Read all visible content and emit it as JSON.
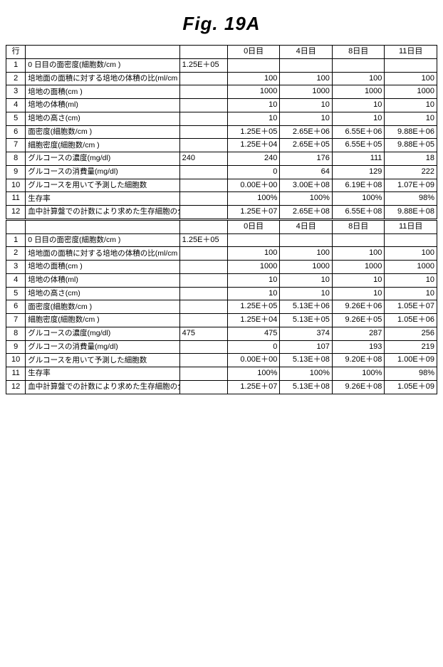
{
  "figure_title": "Fig. 19A",
  "colors": {
    "background": "#ffffff",
    "border": "#000000",
    "text": "#000000"
  },
  "typography": {
    "title_fontsize_pt": 20,
    "title_weight": "bold",
    "title_style": "italic",
    "cell_fontsize_pt": 8.5
  },
  "day_headers": {
    "row_label": "行",
    "init_label": "",
    "d0": "0日目",
    "d4": "4日目",
    "d8": "8日目",
    "d11": "11日目"
  },
  "row_labels": {
    "r1": "0 日目の面密度(細胞数/cm )",
    "r2": "培地面の面積に対する培地の体積の比(ml/cm )",
    "r3": "培地の面積(cm )",
    "r4": "培地の体積(ml)",
    "r5": "培地の高さ(cm)",
    "r6": "面密度(細胞数/cm )",
    "r7": "細胞密度(細胞数/cm )",
    "r8": "グルコースの濃度(mg/dl)",
    "r9": "グルコースの消費量(mg/dl)",
    "r10": "グルコースを用いて予測した細胞数",
    "r11": "生存率",
    "r12": "血中計算盤での計数により求めた生存細胞の全数"
  },
  "block_a": {
    "idx": {
      "r1": "1",
      "r2": "2",
      "r3": "3",
      "r4": "4",
      "r5": "5",
      "r6": "6",
      "r7": "7",
      "r8": "8",
      "r9": "9",
      "r10": "10",
      "r11": "11",
      "r12": "12"
    },
    "init": {
      "r1": "1.25E＋05",
      "r2": "",
      "r3": "",
      "r4": "",
      "r5": "",
      "r6": "",
      "r7": "",
      "r8": "240",
      "r9": "",
      "r10": "",
      "r11": "",
      "r12": ""
    },
    "d0": {
      "r1": "",
      "r2": "100",
      "r3": "1000",
      "r4": "10",
      "r5": "10",
      "r6": "1.25E＋05",
      "r7": "1.25E＋04",
      "r8": "240",
      "r9": "0",
      "r10": "0.00E＋00",
      "r11": "100%",
      "r12": "1.25E＋07"
    },
    "d4": {
      "r1": "",
      "r2": "100",
      "r3": "1000",
      "r4": "10",
      "r5": "10",
      "r6": "2.65E＋06",
      "r7": "2.65E＋05",
      "r8": "176",
      "r9": "64",
      "r10": "3.00E＋08",
      "r11": "100%",
      "r12": "2.65E＋08"
    },
    "d8": {
      "r1": "",
      "r2": "100",
      "r3": "1000",
      "r4": "10",
      "r5": "10",
      "r6": "6.55E＋06",
      "r7": "6.55E＋05",
      "r8": "111",
      "r9": "129",
      "r10": "6.19E＋08",
      "r11": "100%",
      "r12": "6.55E＋08"
    },
    "d11": {
      "r1": "",
      "r2": "100",
      "r3": "1000",
      "r4": "10",
      "r5": "10",
      "r6": "9.88E＋06",
      "r7": "9.88E＋05",
      "r8": "18",
      "r9": "222",
      "r10": "1.07E＋09",
      "r11": "98%",
      "r12": "9.88E＋08"
    }
  },
  "block_b": {
    "idx": {
      "r1": "1",
      "r2": "2",
      "r3": "3",
      "r4": "4",
      "r5": "5",
      "r6": "6",
      "r7": "7",
      "r8": "8",
      "r9": "9",
      "r10": "10",
      "r11": "11",
      "r12": "12"
    },
    "init": {
      "r1": "1.25E＋05",
      "r2": "",
      "r3": "",
      "r4": "",
      "r5": "",
      "r6": "",
      "r7": "",
      "r8": "475",
      "r9": "",
      "r10": "",
      "r11": "",
      "r12": ""
    },
    "d0": {
      "r1": "",
      "r2": "100",
      "r3": "1000",
      "r4": "10",
      "r5": "10",
      "r6": "1.25E＋05",
      "r7": "1.25E＋04",
      "r8": "475",
      "r9": "0",
      "r10": "0.00E＋00",
      "r11": "100%",
      "r12": "1.25E＋07"
    },
    "d4": {
      "r1": "",
      "r2": "100",
      "r3": "1000",
      "r4": "10",
      "r5": "10",
      "r6": "5.13E＋06",
      "r7": "5.13E＋05",
      "r8": "374",
      "r9": "107",
      "r10": "5.13E＋08",
      "r11": "100%",
      "r12": "5.13E＋08"
    },
    "d8": {
      "r1": "",
      "r2": "100",
      "r3": "1000",
      "r4": "10",
      "r5": "10",
      "r6": "9.26E＋06",
      "r7": "9.26E＋05",
      "r8": "287",
      "r9": "193",
      "r10": "9.20E＋08",
      "r11": "100%",
      "r12": "9.26E＋08"
    },
    "d11": {
      "r1": "",
      "r2": "100",
      "r3": "1000",
      "r4": "10",
      "r5": "10",
      "r6": "1.05E＋07",
      "r7": "1.05E＋06",
      "r8": "256",
      "r9": "219",
      "r10": "1.00E＋09",
      "r11": "98%",
      "r12": "1.05E＋09"
    }
  }
}
